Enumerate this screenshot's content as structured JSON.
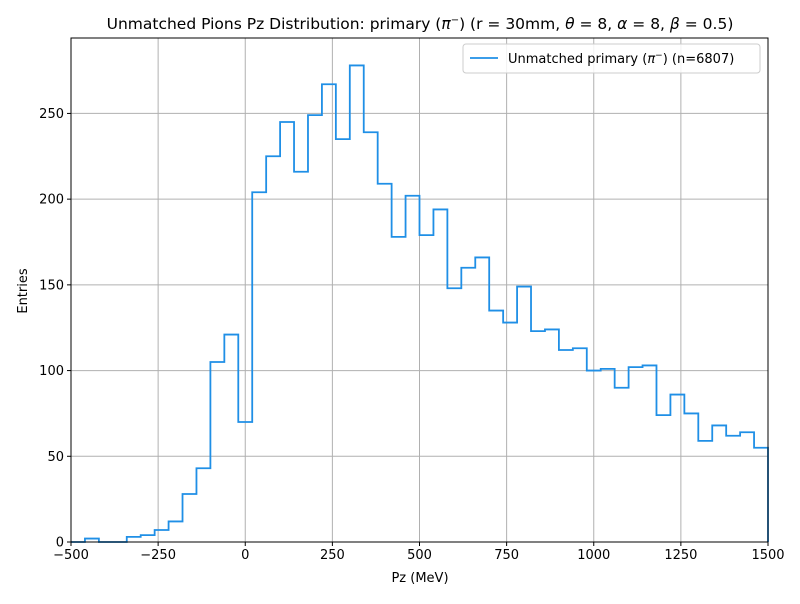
{
  "chart_data": {
    "type": "step-histogram",
    "title": {
      "prefix": "Unmatched Pions Pz Distribution: primary (",
      "pi_symbol": "π",
      "pi_superscript": "−",
      "middle": ") (r = 30mm, ",
      "theta": "θ",
      "theta_value": " = 8, ",
      "alpha": "α",
      "alpha_value": " = 8, ",
      "beta": "β",
      "beta_value": " = 0.5)"
    },
    "xlabel": "Pz (MeV)",
    "ylabel": "Entries",
    "xlim": [
      -500,
      1500
    ],
    "ylim": [
      0,
      294
    ],
    "x_ticks": [
      -500,
      -250,
      0,
      250,
      500,
      750,
      1000,
      1250,
      1500
    ],
    "x_tick_labels": [
      "−500",
      "−250",
      "0",
      "250",
      "500",
      "750",
      "1000",
      "1250",
      "1500"
    ],
    "y_ticks": [
      0,
      50,
      100,
      150,
      200,
      250
    ],
    "y_tick_labels": [
      "0",
      "50",
      "100",
      "150",
      "200",
      "250"
    ],
    "grid": true,
    "legend_position": "top-right",
    "series": [
      {
        "name_prefix": "Unmatched primary (",
        "name_pi": "π",
        "name_sup": "−",
        "name_suffix": ") (n=6807)",
        "color": "#1f8fe6",
        "bin_width": 40,
        "bin_edges_start": -500,
        "values": [
          0,
          2,
          0,
          0,
          3,
          4,
          7,
          12,
          28,
          43,
          105,
          121,
          70,
          204,
          225,
          245,
          216,
          249,
          267,
          235,
          278,
          239,
          209,
          178,
          202,
          179,
          194,
          148,
          160,
          166,
          135,
          128,
          149,
          123,
          124,
          112,
          113,
          100,
          101,
          90,
          102,
          103,
          74,
          86,
          75,
          59,
          68,
          62,
          64,
          55
        ]
      }
    ]
  }
}
